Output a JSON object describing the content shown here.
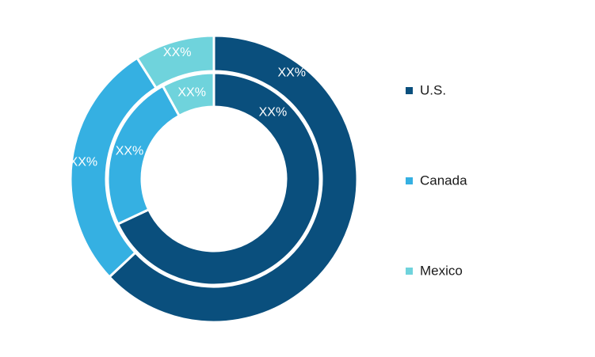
{
  "chart_data": {
    "type": "pie",
    "variant": "nested-donut",
    "categories": [
      "U.S.",
      "Canada",
      "Mexico"
    ],
    "colors": [
      "#0a4f7d",
      "#35b0e2",
      "#6fd3dc"
    ],
    "series": [
      {
        "ring": "outer",
        "values": [
          63,
          28,
          9
        ],
        "labels": [
          "XX%",
          "XX%",
          "XX%"
        ]
      },
      {
        "ring": "inner",
        "values": [
          68,
          24,
          8
        ],
        "labels": [
          "XX%",
          "XX%",
          "XX%"
        ]
      }
    ],
    "legend": {
      "position": "right",
      "entries": [
        "U.S.",
        "Canada",
        "Mexico"
      ]
    }
  }
}
